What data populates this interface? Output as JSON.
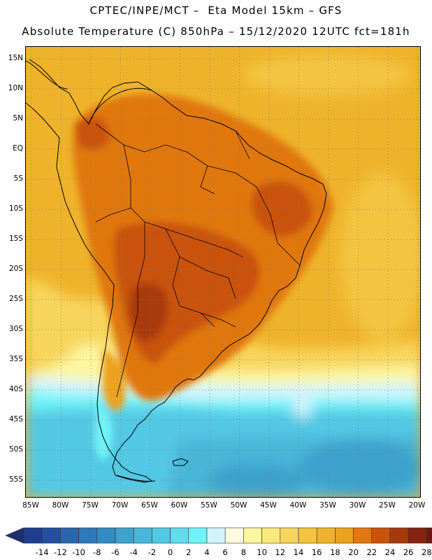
{
  "title_line1": "CPTEC/INPE/MCT –  Eta Model 15km – GFS",
  "title_line2": "Absolute Temperature (C) 850hPa – 15/12/2020 12UTC fct=181h",
  "lat_labels": [
    "15N",
    "10N",
    "5N",
    "EQ",
    "5S",
    "10S",
    "15S",
    "20S",
    "25S",
    "30S",
    "35S",
    "40S",
    "45S",
    "50S",
    "55S"
  ],
  "lon_labels": [
    "85W",
    "80W",
    "75W",
    "70W",
    "65W",
    "60W",
    "55W",
    "50W",
    "45W",
    "40W",
    "35W",
    "30W",
    "25W",
    "20W"
  ],
  "colorbar": {
    "labels": [
      "-14",
      "-12",
      "-10",
      "-8",
      "-6",
      "-4",
      "-2",
      "0",
      "2",
      "4",
      "6",
      "8",
      "10",
      "12",
      "14",
      "16",
      "18",
      "20",
      "22",
      "24",
      "26",
      "28"
    ],
    "colors": [
      "#1f3f8c",
      "#24519f",
      "#2b66ad",
      "#3079b8",
      "#338cc0",
      "#3ea2cb",
      "#48b6d8",
      "#53c8e4",
      "#5fdcee",
      "#6ff3f8",
      "#d1f4fc",
      "#fefae0",
      "#fdf6a0",
      "#fbe87a",
      "#f7d55c",
      "#f3c43f",
      "#efb32b",
      "#eba21c",
      "#e07711",
      "#c9520d",
      "#a73a0c",
      "#862410",
      "#6b1a12"
    ],
    "under_color": "#1c2f6e",
    "over_color": "#6e0a23"
  },
  "map": {
    "background_color": "#efb32b",
    "land_warm_color": "#eba21c",
    "land_hot_color": "#e07711",
    "land_hottest_color": "#c9520d",
    "core_color": "#a73a0c",
    "cool_ocean_color": "#53c8e4",
    "cold_ocean_color": "#3ea2cb",
    "coast_color": "#000000"
  }
}
